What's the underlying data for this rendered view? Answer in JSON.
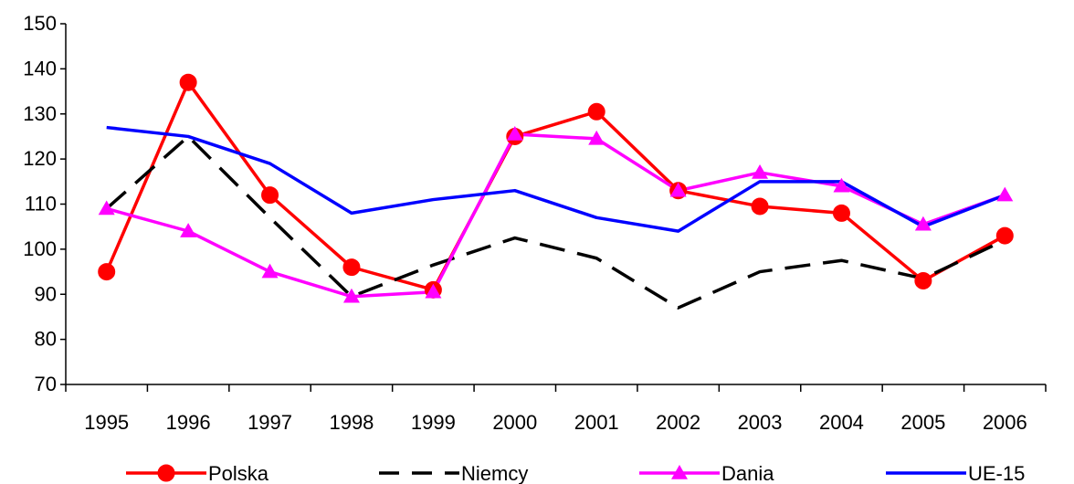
{
  "chart_data": {
    "type": "line",
    "categories": [
      "1995",
      "1996",
      "1997",
      "1998",
      "1999",
      "2000",
      "2001",
      "2002",
      "2003",
      "2004",
      "2005",
      "2006"
    ],
    "ylim": [
      70,
      150
    ],
    "yticks": [
      70,
      80,
      90,
      100,
      110,
      120,
      130,
      140,
      150
    ],
    "grid": false,
    "legend_position": "bottom",
    "series": [
      {
        "name": "Polska",
        "color": "#ff0000",
        "style": "solid",
        "marker": "circle",
        "values": [
          95,
          137,
          112,
          96,
          91,
          125,
          130.5,
          113,
          109.5,
          108,
          93,
          103
        ]
      },
      {
        "name": "Niemcy",
        "color": "#000000",
        "style": "dashed",
        "marker": "none",
        "values": [
          109,
          125,
          107,
          89.5,
          96.5,
          102.5,
          98,
          87,
          95,
          97.5,
          93.5,
          102
        ]
      },
      {
        "name": "Dania",
        "color": "#ff00ff",
        "style": "solid",
        "marker": "triangle",
        "values": [
          109,
          104,
          95,
          89.5,
          90.5,
          125.5,
          124.5,
          113,
          117,
          114,
          105.5,
          112
        ]
      },
      {
        "name": "UE-15",
        "color": "#0000ff",
        "style": "solid",
        "marker": "none",
        "values": [
          127,
          125,
          119,
          108,
          111,
          113,
          107,
          104,
          115,
          115,
          105,
          112
        ]
      }
    ]
  }
}
